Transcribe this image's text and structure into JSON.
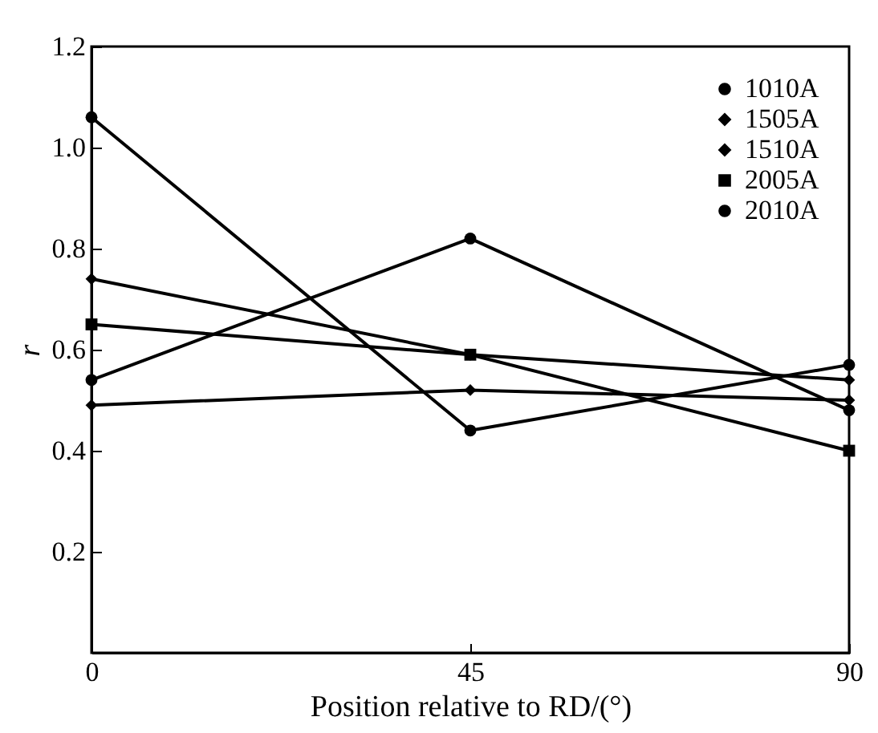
{
  "chart_data": {
    "type": "line",
    "xlabel": "Position relative to RD/(°)",
    "ylabel": "r",
    "x": [
      0,
      45,
      90
    ],
    "xlim": [
      0,
      90
    ],
    "xticks": [
      0,
      45,
      90
    ],
    "ylim": [
      0,
      1.2
    ],
    "yticks": [
      {
        "value": 0,
        "label": null
      },
      0.2,
      0.4,
      0.6,
      0.8,
      {
        "value": 1,
        "label": "1.0"
      },
      1.2
    ],
    "series": [
      {
        "name": "1010A",
        "color": "#000000",
        "marker": "circle",
        "values": [
          0.54,
          0.82,
          0.48
        ]
      },
      {
        "name": "1505A",
        "color": "#000000",
        "marker": "diamond",
        "values": [
          0.74,
          0.59,
          0.54
        ]
      },
      {
        "name": "1510A",
        "color": "#000000",
        "marker": "diamond",
        "values": [
          0.49,
          0.52,
          0.5
        ]
      },
      {
        "name": "2005A",
        "color": "#000000",
        "marker": "square",
        "values": [
          0.65,
          0.59,
          0.4
        ]
      },
      {
        "name": "2010A",
        "color": "#000000",
        "marker": "circle",
        "values": [
          1.06,
          0.44,
          0.57
        ]
      }
    ],
    "legend": "top right",
    "grid": false,
    "line_style": "solid"
  }
}
